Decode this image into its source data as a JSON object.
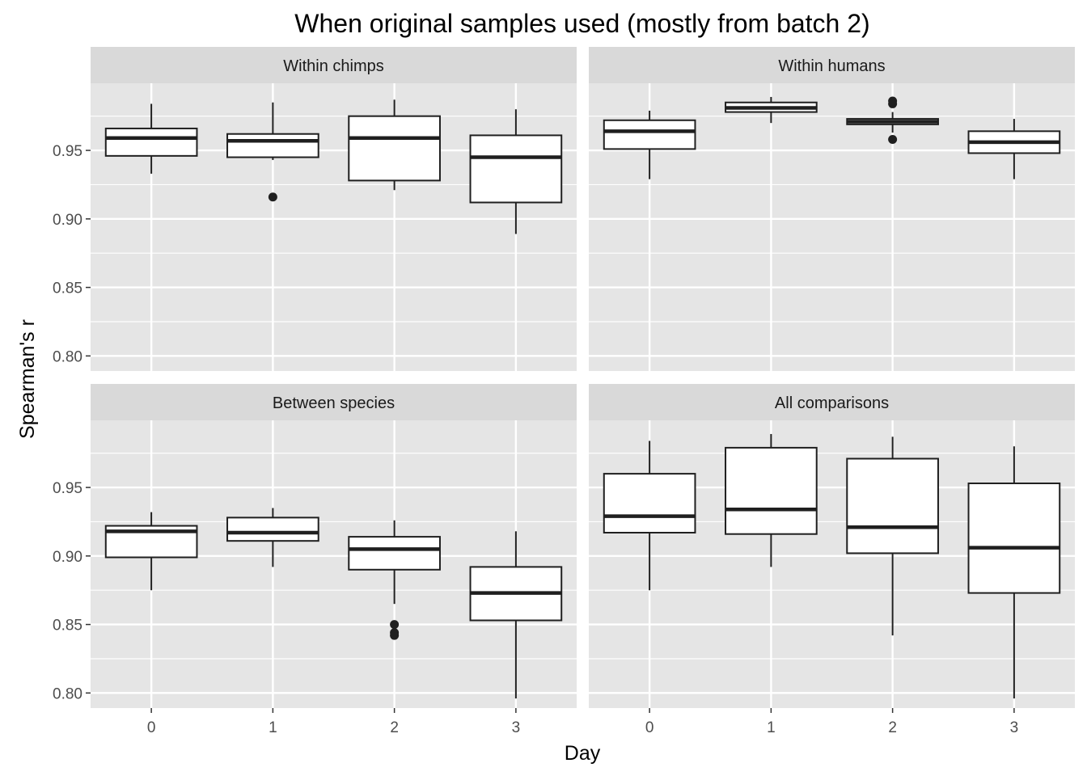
{
  "chart_data": {
    "type": "boxplot",
    "title": "When original samples used (mostly from batch 2)",
    "xlabel": "Day",
    "ylabel": "Spearman's r",
    "categories": [
      "0",
      "1",
      "2",
      "3"
    ],
    "y_ticks": [
      "0.80",
      "0.85",
      "0.90",
      "0.95"
    ],
    "ylim": [
      0.789,
      0.999
    ],
    "grid": true,
    "colors": {
      "panel_background": "#e5e5e5",
      "strip_background": "#d9d9d9",
      "grid": "#ffffff",
      "box_fill": "#ffffff",
      "box_stroke": "#1f1f1f"
    },
    "panels": [
      {
        "label": "Within chimps",
        "boxes": [
          {
            "day": "0",
            "lower_whisker": 0.933,
            "q1": 0.946,
            "median": 0.959,
            "q3": 0.966,
            "upper_whisker": 0.984,
            "outliers": []
          },
          {
            "day": "1",
            "lower_whisker": 0.943,
            "q1": 0.945,
            "median": 0.957,
            "q3": 0.962,
            "upper_whisker": 0.985,
            "outliers": [
              0.916
            ]
          },
          {
            "day": "2",
            "lower_whisker": 0.921,
            "q1": 0.928,
            "median": 0.959,
            "q3": 0.975,
            "upper_whisker": 0.987,
            "outliers": []
          },
          {
            "day": "3",
            "lower_whisker": 0.889,
            "q1": 0.912,
            "median": 0.945,
            "q3": 0.961,
            "upper_whisker": 0.98,
            "outliers": []
          }
        ]
      },
      {
        "label": "Within humans",
        "boxes": [
          {
            "day": "0",
            "lower_whisker": 0.929,
            "q1": 0.951,
            "median": 0.964,
            "q3": 0.972,
            "upper_whisker": 0.979,
            "outliers": []
          },
          {
            "day": "1",
            "lower_whisker": 0.97,
            "q1": 0.978,
            "median": 0.981,
            "q3": 0.985,
            "upper_whisker": 0.989,
            "outliers": []
          },
          {
            "day": "2",
            "lower_whisker": 0.963,
            "q1": 0.969,
            "median": 0.971,
            "q3": 0.973,
            "upper_whisker": 0.978,
            "outliers": [
              0.958,
              0.984,
              0.986
            ]
          },
          {
            "day": "3",
            "lower_whisker": 0.929,
            "q1": 0.948,
            "median": 0.956,
            "q3": 0.964,
            "upper_whisker": 0.973,
            "outliers": []
          }
        ]
      },
      {
        "label": "Between species",
        "boxes": [
          {
            "day": "0",
            "lower_whisker": 0.875,
            "q1": 0.899,
            "median": 0.918,
            "q3": 0.922,
            "upper_whisker": 0.932,
            "outliers": []
          },
          {
            "day": "1",
            "lower_whisker": 0.892,
            "q1": 0.911,
            "median": 0.917,
            "q3": 0.928,
            "upper_whisker": 0.935,
            "outliers": []
          },
          {
            "day": "2",
            "lower_whisker": 0.865,
            "q1": 0.89,
            "median": 0.905,
            "q3": 0.914,
            "upper_whisker": 0.926,
            "outliers": [
              0.842,
              0.844,
              0.85
            ]
          },
          {
            "day": "3",
            "lower_whisker": 0.796,
            "q1": 0.853,
            "median": 0.873,
            "q3": 0.892,
            "upper_whisker": 0.918,
            "outliers": []
          }
        ]
      },
      {
        "label": "All comparisons",
        "boxes": [
          {
            "day": "0",
            "lower_whisker": 0.875,
            "q1": 0.917,
            "median": 0.929,
            "q3": 0.96,
            "upper_whisker": 0.984,
            "outliers": []
          },
          {
            "day": "1",
            "lower_whisker": 0.892,
            "q1": 0.916,
            "median": 0.934,
            "q3": 0.979,
            "upper_whisker": 0.989,
            "outliers": []
          },
          {
            "day": "2",
            "lower_whisker": 0.842,
            "q1": 0.902,
            "median": 0.921,
            "q3": 0.971,
            "upper_whisker": 0.987,
            "outliers": []
          },
          {
            "day": "3",
            "lower_whisker": 0.796,
            "q1": 0.873,
            "median": 0.906,
            "q3": 0.953,
            "upper_whisker": 0.98,
            "outliers": []
          }
        ]
      }
    ]
  }
}
